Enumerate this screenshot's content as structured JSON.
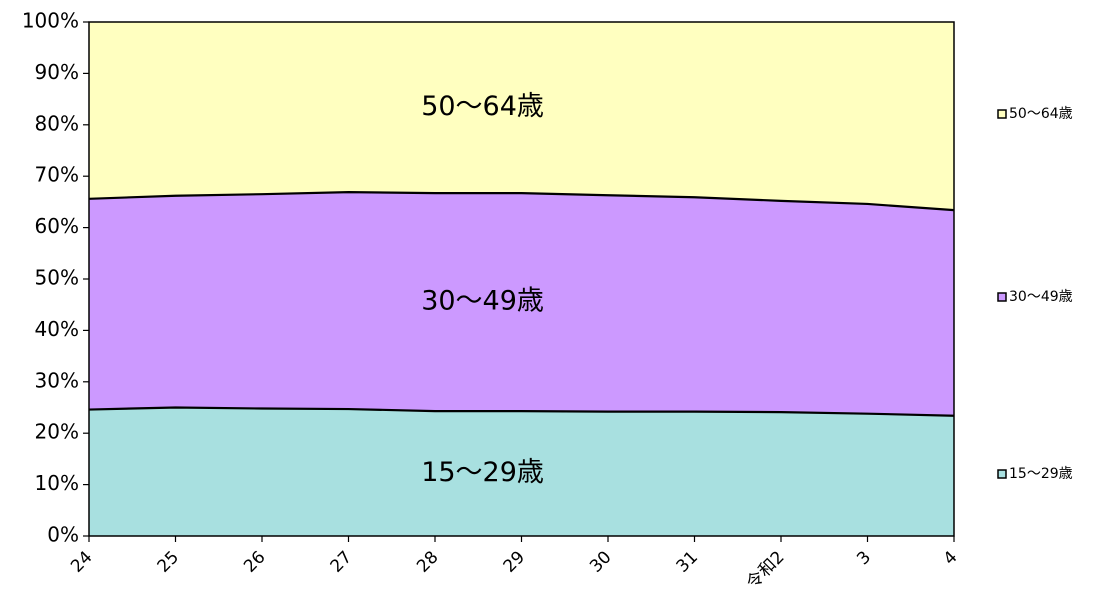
{
  "chart_data": {
    "type": "area",
    "stacked": true,
    "percent": true,
    "categories": [
      "24",
      "25",
      "26",
      "27",
      "28",
      "29",
      "30",
      "31",
      "令和2",
      "3",
      "4"
    ],
    "ylim": [
      0,
      100
    ],
    "y_ticks": [
      "0%",
      "10%",
      "20%",
      "30%",
      "40%",
      "50%",
      "60%",
      "70%",
      "80%",
      "90%",
      "100%"
    ],
    "grid": false,
    "legend_position": "right",
    "series": [
      {
        "name": "15～29歳",
        "color": "#a8e0e0",
        "values": [
          24.6,
          25.0,
          24.8,
          24.7,
          24.3,
          24.3,
          24.2,
          24.2,
          24.1,
          23.8,
          23.4
        ]
      },
      {
        "name": "30～49歳",
        "color": "#cc99ff",
        "values": [
          41.0,
          41.2,
          41.7,
          42.2,
          42.4,
          42.4,
          42.1,
          41.7,
          41.1,
          40.8,
          40.0
        ]
      },
      {
        "name": "50～64歳",
        "color": "#ffffc0",
        "values": [
          34.4,
          33.8,
          33.5,
          33.1,
          33.3,
          33.3,
          33.7,
          34.1,
          34.8,
          35.4,
          36.6
        ]
      }
    ]
  }
}
